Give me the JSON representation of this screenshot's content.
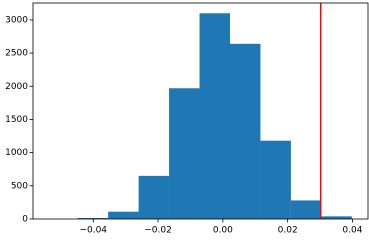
{
  "chart_data": {
    "type": "histogram",
    "bins": [
      -0.0448,
      -0.0354,
      -0.026,
      -0.0166,
      -0.0072,
      0.0022,
      0.0116,
      0.021,
      0.0304,
      0.0398
    ],
    "values": [
      15,
      110,
      650,
      1970,
      3100,
      2640,
      1180,
      280,
      40
    ],
    "color": "#1f77b4",
    "vline": {
      "value": 0.0302,
      "color": "#ff0000"
    },
    "xlim": [
      -0.0586,
      0.0448
    ],
    "ylim": [
      0,
      3255
    ],
    "xticks": [
      {
        "value": -0.04,
        "label": "−0.04"
      },
      {
        "value": -0.02,
        "label": "−0.02"
      },
      {
        "value": 0,
        "label": "0.00"
      },
      {
        "value": 0.02,
        "label": "0.02"
      },
      {
        "value": 0.04,
        "label": "0.04"
      }
    ],
    "yticks": [
      0,
      500,
      1000,
      1500,
      2000,
      2500,
      3000
    ]
  }
}
